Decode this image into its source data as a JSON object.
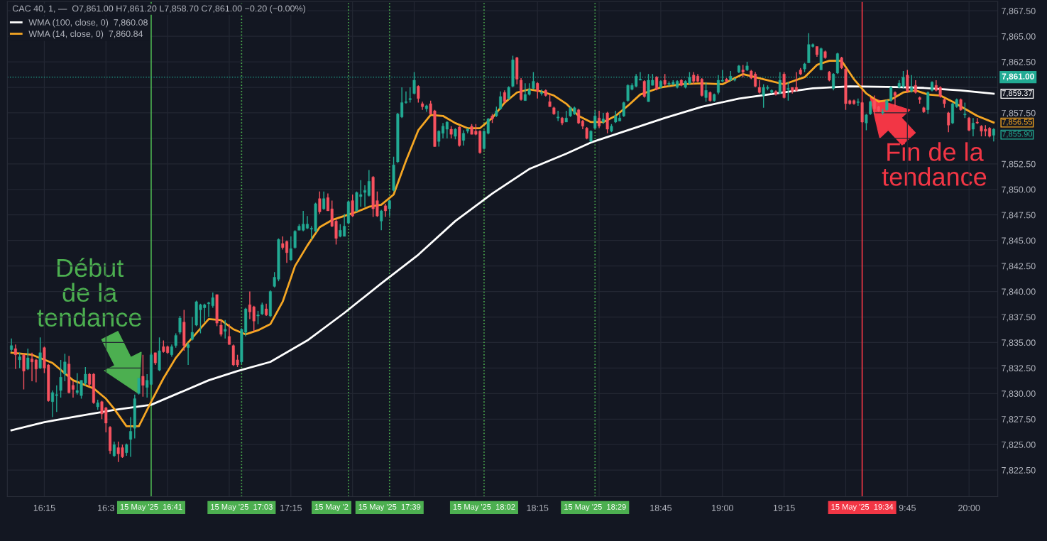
{
  "chart_data": {
    "type": "candlestick",
    "x": [
      "2025-05-15T16:07",
      "2025-05-15T16:08",
      "2025-05-15T16:09",
      "2025-05-15T16:10",
      "2025-05-15T16:11",
      "2025-05-15T16:12",
      "2025-05-15T16:13",
      "2025-05-15T16:14",
      "2025-05-15T16:15",
      "2025-05-15T16:16",
      "2025-05-15T16:17",
      "2025-05-15T16:18",
      "2025-05-15T16:19",
      "2025-05-15T16:20",
      "2025-05-15T16:21",
      "2025-05-15T16:22",
      "2025-05-15T16:23",
      "2025-05-15T16:24",
      "2025-05-15T16:25",
      "2025-05-15T16:26",
      "2025-05-15T16:27",
      "2025-05-15T16:28",
      "2025-05-15T16:29",
      "2025-05-15T16:30",
      "2025-05-15T16:31",
      "2025-05-15T16:32",
      "2025-05-15T16:33",
      "2025-05-15T16:34",
      "2025-05-15T16:35",
      "2025-05-15T16:36",
      "2025-05-15T16:37",
      "2025-05-15T16:38",
      "2025-05-15T16:39",
      "2025-05-15T16:40",
      "2025-05-15T16:41",
      "2025-05-15T16:42",
      "2025-05-15T16:43",
      "2025-05-15T16:44",
      "2025-05-15T16:45",
      "2025-05-15T16:46",
      "2025-05-15T16:47",
      "2025-05-15T16:48",
      "2025-05-15T16:49",
      "2025-05-15T16:50",
      "2025-05-15T16:51",
      "2025-05-15T16:52",
      "2025-05-15T16:53",
      "2025-05-15T16:54",
      "2025-05-15T16:55",
      "2025-05-15T16:56",
      "2025-05-15T16:57",
      "2025-05-15T16:58",
      "2025-05-15T16:59",
      "2025-05-15T17:00",
      "2025-05-15T17:01",
      "2025-05-15T17:02",
      "2025-05-15T17:03",
      "2025-05-15T17:04",
      "2025-05-15T17:05",
      "2025-05-15T17:06",
      "2025-05-15T17:07",
      "2025-05-15T17:08",
      "2025-05-15T17:09",
      "2025-05-15T17:10",
      "2025-05-15T17:11",
      "2025-05-15T17:12",
      "2025-05-15T17:13",
      "2025-05-15T17:14",
      "2025-05-15T17:15",
      "2025-05-15T17:16",
      "2025-05-15T17:17",
      "2025-05-15T17:18",
      "2025-05-15T17:19",
      "2025-05-15T17:20",
      "2025-05-15T17:21",
      "2025-05-15T17:22",
      "2025-05-15T17:23",
      "2025-05-15T17:24",
      "2025-05-15T17:25",
      "2025-05-15T17:26",
      "2025-05-15T17:27",
      "2025-05-15T17:28",
      "2025-05-15T17:29",
      "2025-05-15T17:30",
      "2025-05-15T17:31",
      "2025-05-15T17:32",
      "2025-05-15T17:33",
      "2025-05-15T17:34",
      "2025-05-15T17:35",
      "2025-05-15T17:36",
      "2025-05-15T17:37",
      "2025-05-15T17:38",
      "2025-05-15T17:39",
      "2025-05-15T17:40",
      "2025-05-15T17:41",
      "2025-05-15T17:42",
      "2025-05-15T17:43",
      "2025-05-15T17:44",
      "2025-05-15T17:45",
      "2025-05-15T17:46",
      "2025-05-15T17:47",
      "2025-05-15T17:48",
      "2025-05-15T17:49",
      "2025-05-15T17:50",
      "2025-05-15T17:51",
      "2025-05-15T17:52",
      "2025-05-15T17:53",
      "2025-05-15T17:54",
      "2025-05-15T17:55",
      "2025-05-15T17:56",
      "2025-05-15T17:57",
      "2025-05-15T17:58",
      "2025-05-15T17:59",
      "2025-05-15T18:00",
      "2025-05-15T18:01",
      "2025-05-15T18:02",
      "2025-05-15T18:03",
      "2025-05-15T18:04",
      "2025-05-15T18:05",
      "2025-05-15T18:06",
      "2025-05-15T18:07",
      "2025-05-15T18:08",
      "2025-05-15T18:09",
      "2025-05-15T18:10",
      "2025-05-15T18:11",
      "2025-05-15T18:12",
      "2025-05-15T18:13",
      "2025-05-15T18:14",
      "2025-05-15T18:15",
      "2025-05-15T18:16",
      "2025-05-15T18:17",
      "2025-05-15T18:18",
      "2025-05-15T18:19",
      "2025-05-15T18:20",
      "2025-05-15T18:21",
      "2025-05-15T18:22",
      "2025-05-15T18:23",
      "2025-05-15T18:24",
      "2025-05-15T18:25",
      "2025-05-15T18:26",
      "2025-05-15T18:27",
      "2025-05-15T18:28",
      "2025-05-15T18:29",
      "2025-05-15T18:30",
      "2025-05-15T18:31",
      "2025-05-15T18:32",
      "2025-05-15T18:33",
      "2025-05-15T18:34",
      "2025-05-15T18:35",
      "2025-05-15T18:36",
      "2025-05-15T18:37",
      "2025-05-15T18:38",
      "2025-05-15T18:39",
      "2025-05-15T18:40",
      "2025-05-15T18:41",
      "2025-05-15T18:42",
      "2025-05-15T18:43",
      "2025-05-15T18:44",
      "2025-05-15T18:45",
      "2025-05-15T18:46",
      "2025-05-15T18:47",
      "2025-05-15T18:48",
      "2025-05-15T18:49",
      "2025-05-15T18:50",
      "2025-05-15T18:51",
      "2025-05-15T18:52",
      "2025-05-15T18:53",
      "2025-05-15T18:54",
      "2025-05-15T18:55",
      "2025-05-15T18:56",
      "2025-05-15T18:57",
      "2025-05-15T18:58",
      "2025-05-15T18:59",
      "2025-05-15T19:00",
      "2025-05-15T19:01",
      "2025-05-15T19:02",
      "2025-05-15T19:03",
      "2025-05-15T19:04",
      "2025-05-15T19:05",
      "2025-05-15T19:06",
      "2025-05-15T19:07",
      "2025-05-15T19:08",
      "2025-05-15T19:09",
      "2025-05-15T19:10",
      "2025-05-15T19:11",
      "2025-05-15T19:12",
      "2025-05-15T19:13",
      "2025-05-15T19:14",
      "2025-05-15T19:15",
      "2025-05-15T19:16",
      "2025-05-15T19:17",
      "2025-05-15T19:18",
      "2025-05-15T19:19",
      "2025-05-15T19:20",
      "2025-05-15T19:21",
      "2025-05-15T19:22",
      "2025-05-15T19:23",
      "2025-05-15T19:24",
      "2025-05-15T19:25",
      "2025-05-15T19:26",
      "2025-05-15T19:27",
      "2025-05-15T19:28",
      "2025-05-15T19:29",
      "2025-05-15T19:30",
      "2025-05-15T19:31",
      "2025-05-15T19:32",
      "2025-05-15T19:33",
      "2025-05-15T19:34",
      "2025-05-15T19:35",
      "2025-05-15T19:36",
      "2025-05-15T19:37",
      "2025-05-15T19:38",
      "2025-05-15T19:39",
      "2025-05-15T19:40",
      "2025-05-15T19:41",
      "2025-05-15T19:42",
      "2025-05-15T19:43",
      "2025-05-15T19:44",
      "2025-05-15T19:45",
      "2025-05-15T19:46",
      "2025-05-15T19:47",
      "2025-05-15T19:48",
      "2025-05-15T19:49",
      "2025-05-15T19:50",
      "2025-05-15T19:51",
      "2025-05-15T19:52",
      "2025-05-15T19:53",
      "2025-05-15T19:54",
      "2025-05-15T19:55",
      "2025-05-15T19:56",
      "2025-05-15T19:57",
      "2025-05-15T19:58",
      "2025-05-15T19:59",
      "2025-05-15T20:00",
      "2025-05-15T20:01",
      "2025-05-15T20:02",
      "2025-05-15T20:03",
      "2025-05-15T20:04",
      "2025-05-15T20:05",
      "2025-05-15T20:06"
    ],
    "ohlc": [
      [
        7834.3,
        7835.4,
        7834.1,
        7834.7
      ],
      [
        7834.4,
        7834.8,
        7832.4,
        7833.8
      ],
      [
        7833.3,
        7834.0,
        7832.5,
        7833.6
      ],
      [
        7833.8,
        7833.9,
        7830.4,
        7832.2
      ],
      [
        7832.4,
        7834.4,
        7832.3,
        7833.5
      ],
      [
        7833.4,
        7834.0,
        7831.2,
        7833.1
      ],
      [
        7833.3,
        7833.4,
        7831.1,
        7832.4
      ],
      [
        7832.5,
        7835.5,
        7832.4,
        7834.0
      ],
      [
        7834.5,
        7834.6,
        7832.0,
        7832.5
      ],
      [
        7832.8,
        7832.9,
        7829.2,
        7829.3
      ],
      [
        7829.2,
        7830.3,
        7827.7,
        7830.1
      ],
      [
        7829.8,
        7830.8,
        7828.2,
        7829.9
      ],
      [
        7830.3,
        7833.3,
        7829.6,
        7831.6
      ],
      [
        7831.9,
        7833.9,
        7831.2,
        7833.1
      ],
      [
        7832.9,
        7833.7,
        7830.0,
        7830.1
      ],
      [
        7830.8,
        7831.2,
        7829.6,
        7830.4
      ],
      [
        7830.1,
        7832.0,
        7829.9,
        7830.3
      ],
      [
        7829.8,
        7831.3,
        7829.5,
        7831.3
      ],
      [
        7831.0,
        7832.6,
        7830.8,
        7831.9
      ],
      [
        7831.9,
        7832.0,
        7830.7,
        7830.9
      ],
      [
        7831.9,
        7832.0,
        7829.0,
        7829.1
      ],
      [
        7828.7,
        7829.4,
        7828.4,
        7829.1
      ],
      [
        7829.2,
        7829.3,
        7827.5,
        7828.0
      ],
      [
        7828.6,
        7828.7,
        7826.2,
        7827.1
      ],
      [
        7826.7,
        7826.8,
        7824.1,
        7824.4
      ],
      [
        7823.9,
        7825.3,
        7823.8,
        7825.0
      ],
      [
        7824.7,
        7825.3,
        7823.3,
        7824.1
      ],
      [
        7824.7,
        7825.0,
        7823.7,
        7823.8
      ],
      [
        7824.2,
        7825.1,
        7823.9,
        7825.0
      ],
      [
        7825.5,
        7827.7,
        7823.8,
        7826.3
      ],
      [
        7826.6,
        7829.9,
        7825.6,
        7829.5
      ],
      [
        7830.0,
        7831.5,
        7829.9,
        7831.5
      ],
      [
        7831.7,
        7833.8,
        7829.7,
        7830.8
      ],
      [
        7830.6,
        7831.9,
        7829.6,
        7831.3
      ],
      [
        7830.9,
        7834.0,
        7830.8,
        7833.8
      ],
      [
        7834.0,
        7834.0,
        7832.8,
        7833.0
      ],
      [
        7832.3,
        7835.5,
        7832.2,
        7834.2
      ],
      [
        7834.6,
        7835.2,
        7834.0,
        7834.1
      ],
      [
        7834.6,
        7834.7,
        7833.9,
        7834.0
      ],
      [
        7833.8,
        7834.8,
        7833.6,
        7834.6
      ],
      [
        7834.7,
        7835.9,
        7834.5,
        7835.7
      ],
      [
        7836.0,
        7837.6,
        7835.8,
        7837.4
      ],
      [
        7837.0,
        7838.2,
        7834.2,
        7834.7
      ],
      [
        7834.5,
        7835.0,
        7832.8,
        7834.8
      ],
      [
        7835.3,
        7837.5,
        7835.2,
        7836.0
      ],
      [
        7836.7,
        7839.1,
        7836.6,
        7839.0
      ],
      [
        7838.2,
        7838.8,
        7835.9,
        7838.7
      ],
      [
        7838.4,
        7838.8,
        7837.0,
        7838.7
      ],
      [
        7838.8,
        7839.0,
        7837.5,
        7838.9
      ],
      [
        7838.6,
        7839.9,
        7838.4,
        7839.4
      ],
      [
        7839.7,
        7839.7,
        7836.6,
        7836.9
      ],
      [
        7836.7,
        7837.2,
        7835.6,
        7835.8
      ],
      [
        7836.1,
        7837.2,
        7835.4,
        7836.3
      ],
      [
        7835.6,
        7836.8,
        7834.8,
        7834.8
      ],
      [
        7834.7,
        7834.8,
        7832.7,
        7832.8
      ],
      [
        7833.3,
        7833.8,
        7832.6,
        7832.8
      ],
      [
        7833.1,
        7836.4,
        7832.9,
        7836.3
      ],
      [
        7836.0,
        7838.4,
        7835.6,
        7838.3
      ],
      [
        7838.7,
        7840.0,
        7837.3,
        7838.0
      ],
      [
        7838.5,
        7838.6,
        7836.1,
        7837.1
      ],
      [
        7837.6,
        7838.1,
        7836.8,
        7837.7
      ],
      [
        7837.8,
        7838.9,
        7837.7,
        7838.7
      ],
      [
        7838.3,
        7838.8,
        7837.6,
        7837.7
      ],
      [
        7837.6,
        7840.1,
        7837.5,
        7840.0
      ],
      [
        7840.5,
        7841.9,
        7840.4,
        7841.4
      ],
      [
        7841.2,
        7845.2,
        7841.0,
        7845.1
      ],
      [
        7844.7,
        7845.4,
        7844.1,
        7844.3
      ],
      [
        7844.9,
        7845.0,
        7842.8,
        7843.8
      ],
      [
        7843.1,
        7845.4,
        7843.0,
        7844.2
      ],
      [
        7844.3,
        7846.0,
        7844.2,
        7845.9
      ],
      [
        7846.0,
        7846.6,
        7846.0,
        7846.4
      ],
      [
        7846.0,
        7847.9,
        7845.9,
        7846.6
      ],
      [
        7846.2,
        7847.4,
        7846.1,
        7846.6
      ],
      [
        7846.1,
        7846.4,
        7845.1,
        7846.2
      ],
      [
        7845.9,
        7848.7,
        7845.8,
        7848.6
      ],
      [
        7849.1,
        7849.8,
        7847.6,
        7847.8
      ],
      [
        7848.1,
        7849.8,
        7848.0,
        7849.1
      ],
      [
        7849.2,
        7849.6,
        7847.9,
        7847.9
      ],
      [
        7848.1,
        7848.9,
        7846.3,
        7846.4
      ],
      [
        7846.9,
        7847.1,
        7844.6,
        7845.2
      ],
      [
        7845.4,
        7846.6,
        7845.3,
        7846.0
      ],
      [
        7845.4,
        7847.6,
        7845.4,
        7846.4
      ],
      [
        7846.7,
        7848.9,
        7846.6,
        7848.8
      ],
      [
        7848.9,
        7849.5,
        7847.3,
        7847.4
      ],
      [
        7847.9,
        7849.8,
        7847.8,
        7849.7
      ],
      [
        7849.3,
        7850.9,
        7848.3,
        7849.5
      ],
      [
        7849.7,
        7850.4,
        7848.3,
        7849.9
      ],
      [
        7849.4,
        7851.9,
        7849.3,
        7850.8
      ],
      [
        7851.2,
        7851.3,
        7847.3,
        7848.1
      ],
      [
        7848.9,
        7849.8,
        7847.3,
        7847.4
      ],
      [
        7846.9,
        7848.0,
        7846.0,
        7847.9
      ],
      [
        7848.4,
        7848.6,
        7847.3,
        7847.9
      ],
      [
        7848.1,
        7849.0,
        7847.4,
        7848.9
      ],
      [
        7849.9,
        7853.2,
        7849.8,
        7852.4
      ],
      [
        7852.7,
        7857.5,
        7852.6,
        7857.4
      ],
      [
        7857.1,
        7860.0,
        7857.0,
        7858.5
      ],
      [
        7858.5,
        7859.6,
        7858.4,
        7858.6
      ],
      [
        7858.8,
        7860.0,
        7858.5,
        7858.9
      ],
      [
        7859.4,
        7861.5,
        7859.3,
        7860.7
      ],
      [
        7860.1,
        7860.2,
        7858.5,
        7858.9
      ],
      [
        7858.4,
        7858.6,
        7857.8,
        7858.1
      ],
      [
        7857.9,
        7858.3,
        7857.6,
        7858.2
      ],
      [
        7858.4,
        7858.7,
        7857.3,
        7857.4
      ],
      [
        7857.7,
        7857.8,
        7854.2,
        7854.2
      ],
      [
        7854.7,
        7855.8,
        7854.2,
        7855.7
      ],
      [
        7855.5,
        7856.5,
        7855.0,
        7856.2
      ],
      [
        7855.9,
        7856.7,
        7855.0,
        7856.6
      ],
      [
        7855.9,
        7856.2,
        7855.0,
        7855.4
      ],
      [
        7855.2,
        7856.0,
        7854.9,
        7855.9
      ],
      [
        7856.1,
        7856.2,
        7854.2,
        7854.3
      ],
      [
        7854.8,
        7855.8,
        7854.3,
        7855.5
      ],
      [
        7855.7,
        7856.0,
        7855.5,
        7855.9
      ],
      [
        7856.2,
        7856.4,
        7855.4,
        7855.4
      ],
      [
        7855.7,
        7856.4,
        7855.3,
        7855.4
      ],
      [
        7855.7,
        7855.8,
        7853.5,
        7853.6
      ],
      [
        7854.0,
        7855.8,
        7853.9,
        7855.7
      ],
      [
        7855.5,
        7857.0,
        7855.4,
        7856.9
      ],
      [
        7857.2,
        7857.4,
        7856.5,
        7856.9
      ],
      [
        7857.2,
        7858.1,
        7857.1,
        7857.7
      ],
      [
        7857.9,
        7859.6,
        7857.8,
        7859.1
      ],
      [
        7859.5,
        7859.7,
        7858.5,
        7858.6
      ],
      [
        7858.9,
        7860.1,
        7858.8,
        7860.0
      ],
      [
        7860.1,
        7863.1,
        7860.0,
        7862.7
      ],
      [
        7862.9,
        7863.0,
        7860.3,
        7860.8
      ],
      [
        7860.7,
        7860.9,
        7858.7,
        7858.8
      ],
      [
        7858.7,
        7860.4,
        7858.7,
        7859.3
      ],
      [
        7859.3,
        7860.4,
        7859.2,
        7859.8
      ],
      [
        7859.9,
        7861.5,
        7859.8,
        7860.6
      ],
      [
        7860.4,
        7860.5,
        7858.9,
        7859.6
      ],
      [
        7859.4,
        7859.8,
        7859.2,
        7859.5
      ],
      [
        7859.7,
        7859.8,
        7859.1,
        7859.2
      ],
      [
        7858.6,
        7859.3,
        7858.1,
        7858.1
      ],
      [
        7858.0,
        7858.1,
        7857.3,
        7857.4
      ],
      [
        7857.0,
        7857.7,
        7856.7,
        7857.1
      ],
      [
        7857.0,
        7857.1,
        7856.3,
        7856.5
      ],
      [
        7856.6,
        7857.7,
        7856.6,
        7857.0
      ],
      [
        7857.2,
        7858.1,
        7857.1,
        7858.0
      ],
      [
        7857.4,
        7858.1,
        7857.3,
        7858.0
      ],
      [
        7857.8,
        7857.9,
        7856.4,
        7856.5
      ],
      [
        7856.7,
        7856.8,
        7855.9,
        7856.2
      ],
      [
        7856.0,
        7856.1,
        7854.9,
        7855.0
      ],
      [
        7854.7,
        7855.8,
        7854.7,
        7855.7
      ],
      [
        7856.0,
        7857.7,
        7855.9,
        7857.2
      ],
      [
        7857.0,
        7857.7,
        7856.0,
        7856.2
      ],
      [
        7856.6,
        7857.5,
        7856.4,
        7856.9
      ],
      [
        7857.5,
        7857.6,
        7855.5,
        7855.9
      ],
      [
        7855.7,
        7856.4,
        7855.6,
        7856.2
      ],
      [
        7856.6,
        7857.7,
        7856.5,
        7857.2
      ],
      [
        7856.7,
        7857.5,
        7856.7,
        7857.0
      ],
      [
        7857.2,
        7858.6,
        7857.1,
        7858.5
      ],
      [
        7858.7,
        7860.3,
        7858.6,
        7860.2
      ],
      [
        7859.8,
        7860.4,
        7859.7,
        7860.2
      ],
      [
        7860.1,
        7861.3,
        7860.0,
        7861.1
      ],
      [
        7860.7,
        7861.5,
        7860.7,
        7860.8
      ],
      [
        7860.6,
        7860.7,
        7859.0,
        7859.1
      ],
      [
        7858.6,
        7861.3,
        7858.6,
        7860.7
      ],
      [
        7860.2,
        7861.3,
        7860.2,
        7860.7
      ],
      [
        7861.0,
        7861.1,
        7859.7,
        7859.8
      ],
      [
        7860.0,
        7860.7,
        7859.9,
        7860.6
      ],
      [
        7860.7,
        7861.3,
        7860.1,
        7860.3
      ],
      [
        7860.3,
        7860.6,
        7860.1,
        7860.4
      ],
      [
        7860.3,
        7860.7,
        7860.2,
        7860.5
      ],
      [
        7860.0,
        7860.7,
        7859.9,
        7860.6
      ],
      [
        7860.7,
        7860.8,
        7860.1,
        7860.2
      ],
      [
        7860.0,
        7860.7,
        7859.9,
        7860.6
      ],
      [
        7860.4,
        7861.5,
        7860.3,
        7861.0
      ],
      [
        7861.2,
        7861.5,
        7860.3,
        7860.6
      ],
      [
        7861.1,
        7861.3,
        7860.5,
        7860.6
      ],
      [
        7860.8,
        7860.9,
        7859.1,
        7859.2
      ],
      [
        7859.0,
        7860.5,
        7858.6,
        7859.7
      ],
      [
        7859.5,
        7859.6,
        7858.6,
        7858.7
      ],
      [
        7858.7,
        7859.4,
        7858.6,
        7859.3
      ],
      [
        7859.5,
        7861.2,
        7859.3,
        7860.7
      ],
      [
        7860.6,
        7861.7,
        7860.5,
        7860.7
      ],
      [
        7860.8,
        7860.9,
        7860.5,
        7860.6
      ],
      [
        7860.7,
        7861.6,
        7860.6,
        7861.1
      ],
      [
        7860.7,
        7860.9,
        7860.6,
        7860.8
      ],
      [
        7861.5,
        7862.2,
        7861.4,
        7862.1
      ],
      [
        7861.7,
        7862.2,
        7861.0,
        7861.5
      ],
      [
        7861.7,
        7862.5,
        7861.6,
        7862.1
      ],
      [
        7861.6,
        7861.7,
        7860.8,
        7860.9
      ],
      [
        7861.3,
        7861.5,
        7860.0,
        7860.1
      ],
      [
        7860.0,
        7860.7,
        7859.4,
        7859.5
      ],
      [
        7859.2,
        7860.3,
        7858.0,
        7860.0
      ],
      [
        7859.9,
        7860.2,
        7859.7,
        7860.0
      ],
      [
        7859.5,
        7859.8,
        7859.4,
        7859.7
      ],
      [
        7859.6,
        7859.7,
        7859.2,
        7859.3
      ],
      [
        7859.4,
        7861.5,
        7859.4,
        7860.7
      ],
      [
        7861.3,
        7861.5,
        7858.9,
        7859.0
      ],
      [
        7859.8,
        7860.5,
        7858.7,
        7859.9
      ],
      [
        7860.0,
        7860.0,
        7859.4,
        7859.6
      ],
      [
        7860.0,
        7861.5,
        7859.6,
        7859.7
      ],
      [
        7861.7,
        7861.9,
        7861.2,
        7861.3
      ],
      [
        7861.8,
        7862.4,
        7861.5,
        7862.3
      ],
      [
        7862.4,
        7865.3,
        7862.4,
        7864.2
      ],
      [
        7864.0,
        7864.3,
        7863.9,
        7864.2
      ],
      [
        7864.0,
        7864.0,
        7863.0,
        7863.2
      ],
      [
        7861.7,
        7863.9,
        7861.7,
        7863.8
      ],
      [
        7863.5,
        7863.6,
        7862.8,
        7862.9
      ],
      [
        7861.5,
        7861.6,
        7860.6,
        7860.7
      ],
      [
        7859.9,
        7861.4,
        7859.7,
        7861.3
      ],
      [
        7861.4,
        7863.4,
        7861.3,
        7863.3
      ],
      [
        7862.9,
        7863.0,
        7861.8,
        7861.9
      ],
      [
        7861.8,
        7861.9,
        7857.8,
        7858.4
      ],
      [
        7858.7,
        7858.8,
        7858.3,
        7858.4
      ],
      [
        7858.7,
        7858.8,
        7858.3,
        7858.4
      ],
      [
        7858.5,
        7858.9,
        7858.2,
        7858.6
      ],
      [
        7858.5,
        7858.6,
        7856.5,
        7856.6
      ],
      [
        7856.5,
        7857.4,
        7855.8,
        7857.3
      ],
      [
        7857.4,
        7858.7,
        7857.3,
        7858.6
      ],
      [
        7858.7,
        7859.2,
        7857.4,
        7857.9
      ],
      [
        7858.1,
        7858.2,
        7857.6,
        7857.7
      ],
      [
        7857.5,
        7857.9,
        7857.3,
        7857.6
      ],
      [
        7857.8,
        7858.8,
        7857.7,
        7858.7
      ],
      [
        7858.7,
        7860.1,
        7858.6,
        7860.0
      ],
      [
        7859.5,
        7859.6,
        7858.1,
        7859.2
      ],
      [
        7860.0,
        7860.7,
        7859.9,
        7860.4
      ],
      [
        7860.1,
        7861.6,
        7859.9,
        7861.0
      ],
      [
        7861.2,
        7861.7,
        7859.5,
        7859.6
      ],
      [
        7859.6,
        7861.2,
        7859.5,
        7860.0
      ],
      [
        7860.2,
        7860.7,
        7859.4,
        7859.5
      ],
      [
        7859.0,
        7859.1,
        7858.4,
        7858.8
      ],
      [
        7858.0,
        7858.1,
        7857.5,
        7857.6
      ],
      [
        7857.8,
        7859.6,
        7857.4,
        7859.5
      ],
      [
        7859.7,
        7860.6,
        7859.6,
        7860.5
      ],
      [
        7860.2,
        7860.7,
        7859.6,
        7859.7
      ],
      [
        7860.0,
        7860.1,
        7859.0,
        7859.1
      ],
      [
        7858.8,
        7858.9,
        7858.0,
        7858.4
      ],
      [
        7857.5,
        7857.6,
        7855.6,
        7856.3
      ],
      [
        7856.5,
        7858.5,
        7856.4,
        7858.4
      ],
      [
        7858.1,
        7858.9,
        7858.0,
        7858.8
      ],
      [
        7858.8,
        7858.9,
        7857.7,
        7857.8
      ],
      [
        7857.3,
        7858.5,
        7857.0,
        7857.4
      ],
      [
        7857.0,
        7857.1,
        7855.7,
        7855.8
      ],
      [
        7855.9,
        7857.0,
        7855.2,
        7856.5
      ],
      [
        7856.6,
        7857.0,
        7856.4,
        7856.5
      ],
      [
        7856.2,
        7856.3,
        7855.2,
        7855.7
      ],
      [
        7855.9,
        7856.3,
        7855.2,
        7855.7
      ],
      [
        7856.0,
        7856.1,
        7855.1,
        7855.2
      ],
      [
        7855.3,
        7856.0,
        7854.7,
        7855.9
      ]
    ],
    "colors": [
      "#22ab94",
      "#f7525f",
      "#22ab94",
      "#f7525f",
      "#22ab94",
      "#f7525f",
      "#f7525f",
      "#22ab94",
      "#f7525f",
      "#f7525f",
      "#22ab94",
      "#22ab94",
      "#22ab94",
      "#22ab94",
      "#f7525f",
      "#f7525f",
      "#22ab94",
      "#22ab94",
      "#22ab94",
      "#f7525f",
      "#f7525f",
      "#22ab94",
      "#f7525f",
      "#f7525f",
      "#f7525f",
      "#22ab94",
      "#f7525f",
      "#f7525f",
      "#22ab94",
      "#22ab94",
      "#22ab94",
      "#22ab94",
      "#f7525f",
      "#22ab94",
      "#22ab94",
      "#f7525f",
      "#22ab94",
      "#f7525f",
      "#f7525f",
      "#22ab94",
      "#22ab94",
      "#22ab94",
      "#f7525f",
      "#22ab94",
      "#22ab94",
      "#22ab94",
      "#22ab94",
      "#22ab94",
      "#22ab94",
      "#22ab94",
      "#f7525f",
      "#f7525f",
      "#22ab94",
      "#f7525f",
      "#f7525f",
      "#f7525f",
      "#22ab94",
      "#22ab94",
      "#f7525f",
      "#f7525f",
      "#22ab94",
      "#22ab94",
      "#f7525f",
      "#22ab94",
      "#22ab94",
      "#22ab94",
      "#f7525f",
      "#f7525f",
      "#22ab94",
      "#22ab94",
      "#22ab94",
      "#22ab94",
      "#22ab94",
      "#22ab94",
      "#22ab94",
      "#f7525f",
      "#22ab94",
      "#f7525f",
      "#f7525f",
      "#f7525f",
      "#22ab94",
      "#22ab94",
      "#22ab94",
      "#f7525f",
      "#22ab94",
      "#22ab94",
      "#22ab94",
      "#22ab94",
      "#f7525f",
      "#f7525f",
      "#22ab94",
      "#f7525f",
      "#22ab94",
      "#22ab94",
      "#22ab94",
      "#22ab94",
      "#22ab94",
      "#22ab94",
      "#22ab94",
      "#f7525f",
      "#f7525f",
      "#22ab94",
      "#f7525f",
      "#f7525f",
      "#22ab94",
      "#22ab94",
      "#22ab94",
      "#f7525f",
      "#22ab94",
      "#f7525f",
      "#22ab94",
      "#22ab94",
      "#f7525f",
      "#f7525f",
      "#f7525f",
      "#22ab94",
      "#22ab94",
      "#f7525f",
      "#22ab94",
      "#22ab94",
      "#f7525f",
      "#22ab94",
      "#22ab94",
      "#f7525f",
      "#f7525f",
      "#22ab94",
      "#22ab94",
      "#22ab94",
      "#f7525f",
      "#22ab94",
      "#f7525f",
      "#f7525f",
      "#f7525f",
      "#22ab94",
      "#f7525f",
      "#22ab94",
      "#22ab94",
      "#22ab94",
      "#f7525f",
      "#f7525f",
      "#f7525f",
      "#22ab94",
      "#22ab94",
      "#f7525f",
      "#22ab94",
      "#f7525f",
      "#22ab94",
      "#22ab94",
      "#22ab94",
      "#22ab94",
      "#22ab94",
      "#22ab94",
      "#22ab94",
      "#22ab94",
      "#f7525f",
      "#22ab94",
      "#22ab94",
      "#f7525f",
      "#22ab94",
      "#f7525f",
      "#22ab94",
      "#22ab94",
      "#22ab94",
      "#f7525f",
      "#22ab94",
      "#22ab94",
      "#f7525f",
      "#f7525f",
      "#f7525f",
      "#22ab94",
      "#f7525f",
      "#22ab94",
      "#22ab94",
      "#22ab94",
      "#f7525f",
      "#22ab94",
      "#22ab94",
      "#22ab94",
      "#f7525f",
      "#22ab94",
      "#f7525f",
      "#f7525f",
      "#f7525f",
      "#22ab94",
      "#22ab94",
      "#22ab94",
      "#f7525f",
      "#22ab94",
      "#f7525f",
      "#22ab94",
      "#f7525f",
      "#f7525f",
      "#f7525f",
      "#22ab94",
      "#22ab94",
      "#22ab94",
      "#f7525f",
      "#22ab94",
      "#f7525f",
      "#f7525f",
      "#22ab94",
      "#22ab94",
      "#f7525f",
      "#f7525f",
      "#f7525f",
      "#f7525f",
      "#22ab94",
      "#f7525f",
      "#22ab94",
      "#22ab94",
      "#f7525f",
      "#f7525f",
      "#22ab94",
      "#22ab94",
      "#22ab94",
      "#f7525f",
      "#22ab94",
      "#22ab94",
      "#f7525f",
      "#22ab94",
      "#f7525f",
      "#f7525f",
      "#f7525f",
      "#22ab94",
      "#22ab94",
      "#f7525f",
      "#f7525f",
      "#f7525f",
      "#f7525f",
      "#22ab94",
      "#22ab94",
      "#f7525f",
      "#22ab94",
      "#f7525f",
      "#22ab94",
      "#f7525f",
      "#f7525f",
      "#f7525f",
      "#f7525f",
      "#22ab94"
    ],
    "series": [
      {
        "type": "line",
        "name": "WMA (100, close, 0)  7,860.08",
        "color": "#ffffff",
        "x": [
          "2025-05-15T16:07",
          "2025-05-15T16:15",
          "2025-05-15T16:22",
          "2025-05-15T16:32",
          "2025-05-15T16:41",
          "2025-05-15T16:48",
          "2025-05-15T16:55",
          "2025-05-15T17:02",
          "2025-05-15T17:10",
          "2025-05-15T17:19",
          "2025-05-15T17:28",
          "2025-05-15T17:37",
          "2025-05-15T17:46",
          "2025-05-15T17:55",
          "2025-05-15T18:04",
          "2025-05-15T18:13",
          "2025-05-15T18:22",
          "2025-05-15T18:28",
          "2025-05-15T18:37",
          "2025-05-15T18:46",
          "2025-05-15T18:55",
          "2025-05-15T19:04",
          "2025-05-15T19:13",
          "2025-05-15T19:22",
          "2025-05-15T19:31",
          "2025-05-15T19:40",
          "2025-05-15T19:49",
          "2025-05-15T19:58",
          "2025-05-15T20:06"
        ],
        "values": [
          7826.4,
          7827.2,
          7827.7,
          7828.4,
          7828.9,
          7830.1,
          7831.3,
          7832.2,
          7833.1,
          7835.2,
          7837.9,
          7840.8,
          7843.6,
          7846.9,
          7849.6,
          7852.0,
          7853.5,
          7854.6,
          7855.8,
          7857.0,
          7858.1,
          7858.9,
          7859.4,
          7859.9,
          7860.1,
          7860.05,
          7859.95,
          7859.7,
          7859.37
        ]
      },
      {
        "type": "line",
        "name": "WMA (14, close, 0)  7,860.84",
        "color": "#f5a623",
        "x": [
          "2025-05-15T16:07",
          "2025-05-15T16:12",
          "2025-05-15T16:17",
          "2025-05-15T16:22",
          "2025-05-15T16:27",
          "2025-05-15T16:30",
          "2025-05-15T16:32",
          "2025-05-15T16:35",
          "2025-05-15T16:38",
          "2025-05-15T16:41",
          "2025-05-15T16:44",
          "2025-05-15T16:47",
          "2025-05-15T16:50",
          "2025-05-15T16:55",
          "2025-05-15T16:58",
          "2025-05-15T17:01",
          "2025-05-15T17:04",
          "2025-05-15T17:07",
          "2025-05-15T17:10",
          "2025-05-15T17:13",
          "2025-05-15T17:16",
          "2025-05-15T17:19",
          "2025-05-15T17:22",
          "2025-05-15T17:25",
          "2025-05-15T17:28",
          "2025-05-15T17:31",
          "2025-05-15T17:34",
          "2025-05-15T17:37",
          "2025-05-15T17:40",
          "2025-05-15T17:43",
          "2025-05-15T17:46",
          "2025-05-15T17:49",
          "2025-05-15T17:52",
          "2025-05-15T17:55",
          "2025-05-15T17:58",
          "2025-05-15T18:01",
          "2025-05-15T18:04",
          "2025-05-15T18:07",
          "2025-05-15T18:10",
          "2025-05-15T18:13",
          "2025-05-15T18:16",
          "2025-05-15T18:19",
          "2025-05-15T18:22",
          "2025-05-15T18:25",
          "2025-05-15T18:28",
          "2025-05-15T18:31",
          "2025-05-15T18:34",
          "2025-05-15T18:37",
          "2025-05-15T18:40",
          "2025-05-15T18:45",
          "2025-05-15T18:50",
          "2025-05-15T18:55",
          "2025-05-15T19:00",
          "2025-05-15T19:05",
          "2025-05-15T19:10",
          "2025-05-15T19:15",
          "2025-05-15T19:20",
          "2025-05-15T19:23",
          "2025-05-15T19:26",
          "2025-05-15T19:29",
          "2025-05-15T19:32",
          "2025-05-15T19:35",
          "2025-05-15T19:38",
          "2025-05-15T19:41",
          "2025-05-15T19:44",
          "2025-05-15T19:47",
          "2025-05-15T19:50",
          "2025-05-15T19:53",
          "2025-05-15T19:56",
          "2025-05-15T19:59",
          "2025-05-15T20:02",
          "2025-05-15T20:06"
        ],
        "values": [
          7834.0,
          7833.8,
          7833.0,
          7831.3,
          7830.5,
          7829.5,
          7828.5,
          7826.8,
          7826.8,
          7829.2,
          7831.5,
          7833.5,
          7835.0,
          7837.3,
          7837.2,
          7836.3,
          7835.8,
          7836.2,
          7836.8,
          7839.0,
          7842.5,
          7844.5,
          7846.3,
          7847.0,
          7847.4,
          7847.8,
          7848.3,
          7848.5,
          7849.5,
          7852.8,
          7855.8,
          7857.3,
          7857.2,
          7856.5,
          7856.0,
          7856.0,
          7857.0,
          7858.5,
          7859.5,
          7859.8,
          7859.6,
          7859.2,
          7858.4,
          7857.2,
          7856.6,
          7856.6,
          7857.2,
          7858.2,
          7859.3,
          7860.0,
          7860.3,
          7860.4,
          7860.3,
          7861.3,
          7860.8,
          7860.3,
          7861.0,
          7862.2,
          7862.6,
          7862.6,
          7860.8,
          7859.4,
          7858.6,
          7858.8,
          7859.5,
          7859.7,
          7859.3,
          7859.2,
          7858.6,
          7857.9,
          7857.2,
          7856.55
        ]
      }
    ],
    "xlim": [
      "2025-05-15T16:06",
      "2025-05-15T20:07"
    ],
    "xticks": [
      {
        "value": "2025-05-15T16:15",
        "label": "16:15"
      },
      {
        "value": "2025-05-15T16:30",
        "label": "16:3"
      },
      {
        "value": "2025-05-15T16:45",
        "label": null
      },
      {
        "value": "2025-05-15T17:00",
        "label": null
      },
      {
        "value": "2025-05-15T17:15",
        "label": "17:15"
      },
      {
        "value": "2025-05-15T17:30",
        "label": null
      },
      {
        "value": "2025-05-15T17:45",
        "label": null
      },
      {
        "value": "2025-05-15T18:00",
        "label": null
      },
      {
        "value": "2025-05-15T18:15",
        "label": "18:15"
      },
      {
        "value": "2025-05-15T18:30",
        "label": null
      },
      {
        "value": "2025-05-15T18:45",
        "label": "18:45"
      },
      {
        "value": "2025-05-15T19:00",
        "label": "19:00"
      },
      {
        "value": "2025-05-15T19:15",
        "label": "19:15"
      },
      {
        "value": "2025-05-15T19:30",
        "label": null
      },
      {
        "value": "2025-05-15T19:45",
        "label": "9:45"
      },
      {
        "value": "2025-05-15T20:00",
        "label": "20:00"
      }
    ],
    "ylim": [
      7819.9,
      7868.4
    ],
    "yticks": [
      {
        "value": 7822.5,
        "label": "7,822.50"
      },
      {
        "value": 7825,
        "label": "7,825.00"
      },
      {
        "value": 7827.5,
        "label": "7,827.50"
      },
      {
        "value": 7830,
        "label": "7,830.00"
      },
      {
        "value": 7832.5,
        "label": "7,832.50"
      },
      {
        "value": 7835,
        "label": "7,835.00"
      },
      {
        "value": 7837.5,
        "label": "7,837.50"
      },
      {
        "value": 7840,
        "label": "7,840.00"
      },
      {
        "value": 7842.5,
        "label": "7,842.50"
      },
      {
        "value": 7845,
        "label": "7,845.00"
      },
      {
        "value": 7847.5,
        "label": "7,847.50"
      },
      {
        "value": 7850,
        "label": "7,850.00"
      },
      {
        "value": 7852.5,
        "label": "7,852.50"
      },
      {
        "value": 7855,
        "label": null
      },
      {
        "value": 7857.5,
        "label": "7,857.50"
      },
      {
        "value": 7860,
        "label": null
      },
      {
        "value": 7862.5,
        "label": "7,862.50"
      },
      {
        "value": 7865,
        "label": "7,865.00"
      },
      {
        "value": 7867.5,
        "label": "7,867.50"
      }
    ],
    "grid": true,
    "legend": "top left",
    "ref_lines": [
      {
        "axis": "x",
        "value": "2025-05-15T16:41",
        "label": "15 May '25  16:41",
        "color": "#4caf50",
        "line_style": "solid"
      },
      {
        "axis": "x",
        "value": "2025-05-15T17:03",
        "label": "15 May '25  17:03",
        "color": "#4caf50",
        "line_style": "dotted"
      },
      {
        "axis": "x",
        "value": "2025-05-15T17:29",
        "label": "15 May '2",
        "color": "#4caf50",
        "line_style": "dotted"
      },
      {
        "axis": "x",
        "value": "2025-05-15T17:39",
        "label": "15 May '25  17:39",
        "color": "#4caf50",
        "line_style": "dotted"
      },
      {
        "axis": "x",
        "value": "2025-05-15T18:02",
        "label": "15 May '25  18:02",
        "color": "#4caf50",
        "line_style": "dotted"
      },
      {
        "axis": "x",
        "value": "2025-05-15T18:29",
        "label": "15 May '25  18:29",
        "color": "#4caf50",
        "line_style": "dotted"
      },
      {
        "axis": "x",
        "value": "2025-05-15T19:34",
        "label": "15 May '25  19:34",
        "color": "#f23645",
        "line_style": "solid"
      },
      {
        "axis": "y",
        "value": 7861,
        "label": "7,861.00",
        "color": "#22ab94",
        "line_style": "dotted"
      }
    ],
    "annotations": [
      "CAC 40, 1, —  O7,861.00 H7,861.20 L7,858.70 C7,861.00 −0.20 (−0.00%)",
      {
        "text": "Début\nde la\ntendance",
        "x": "2025-05-15T16:38",
        "y": 7830.0
      },
      {
        "text": "Fin de la\ntendance",
        "x": "2025-05-15T19:36",
        "y": 7859.0
      },
      {
        "text": "7,859.37",
        "x": "2025-05-15T20:06",
        "y": 7859.37
      },
      {
        "text": "7,856.55",
        "x": "2025-05-15T20:06",
        "y": 7856.55
      },
      {
        "text": "7,855.90",
        "x": "2025-05-15T20:06",
        "y": 7855.9
      }
    ]
  }
}
